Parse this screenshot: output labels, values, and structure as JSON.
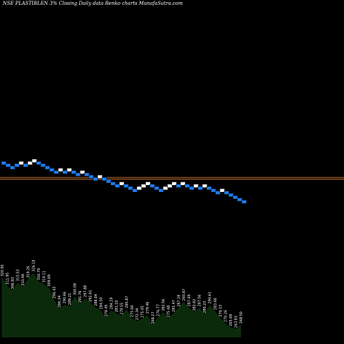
{
  "chart_data": {
    "type": "renko",
    "title": "NSE PLASTIBLEN  3% Closing Daily data  Renko  charts MunafaSutra.com",
    "reference_lines": [
      {
        "name": "upper",
        "y": 296.8,
        "color": "#c87533"
      },
      {
        "name": "lower",
        "y": 294.6,
        "color": "#c87533"
      }
    ],
    "ylim": [
      239.8,
      346.5
    ],
    "bricks": [
      {
        "top": 318.0,
        "bottom": 315.0,
        "direction": "down"
      },
      {
        "top": 315.0,
        "bottom": 312.0,
        "direction": "down"
      },
      {
        "top": 312.0,
        "bottom": 309.0,
        "direction": "down"
      },
      {
        "top": 315.0,
        "bottom": 312.0,
        "direction": "down"
      },
      {
        "top": 318.0,
        "bottom": 315.0,
        "direction": "up"
      },
      {
        "top": 315.0,
        "bottom": 312.0,
        "direction": "down"
      },
      {
        "top": 318.0,
        "bottom": 315.0,
        "direction": "up"
      },
      {
        "top": 321.0,
        "bottom": 318.0,
        "direction": "up"
      },
      {
        "top": 318.0,
        "bottom": 315.0,
        "direction": "down"
      },
      {
        "top": 315.0,
        "bottom": 312.0,
        "direction": "down"
      },
      {
        "top": 312.0,
        "bottom": 309.0,
        "direction": "down"
      },
      {
        "top": 309.0,
        "bottom": 306.0,
        "direction": "down"
      },
      {
        "top": 306.0,
        "bottom": 303.0,
        "direction": "down"
      },
      {
        "top": 309.0,
        "bottom": 306.0,
        "direction": "up"
      },
      {
        "top": 306.0,
        "bottom": 303.0,
        "direction": "down"
      },
      {
        "top": 309.0,
        "bottom": 306.0,
        "direction": "up"
      },
      {
        "top": 306.0,
        "bottom": 303.0,
        "direction": "down"
      },
      {
        "top": 303.0,
        "bottom": 300.0,
        "direction": "down"
      },
      {
        "top": 306.0,
        "bottom": 303.0,
        "direction": "up"
      },
      {
        "top": 303.0,
        "bottom": 300.0,
        "direction": "down"
      },
      {
        "top": 300.0,
        "bottom": 297.0,
        "direction": "down"
      },
      {
        "top": 297.0,
        "bottom": 294.0,
        "direction": "down"
      },
      {
        "top": 300.0,
        "bottom": 297.0,
        "direction": "up"
      },
      {
        "top": 297.0,
        "bottom": 294.0,
        "direction": "down"
      },
      {
        "top": 294.0,
        "bottom": 291.0,
        "direction": "down"
      },
      {
        "top": 291.0,
        "bottom": 288.0,
        "direction": "down"
      },
      {
        "top": 288.0,
        "bottom": 285.0,
        "direction": "down"
      },
      {
        "top": 291.0,
        "bottom": 288.0,
        "direction": "up"
      },
      {
        "top": 288.0,
        "bottom": 285.0,
        "direction": "down"
      },
      {
        "top": 285.0,
        "bottom": 282.0,
        "direction": "down"
      },
      {
        "top": 282.0,
        "bottom": 279.0,
        "direction": "down"
      },
      {
        "top": 285.0,
        "bottom": 282.0,
        "direction": "up"
      },
      {
        "top": 288.0,
        "bottom": 285.0,
        "direction": "up"
      },
      {
        "top": 291.0,
        "bottom": 288.0,
        "direction": "up"
      },
      {
        "top": 288.0,
        "bottom": 285.0,
        "direction": "down"
      },
      {
        "top": 285.0,
        "bottom": 282.0,
        "direction": "down"
      },
      {
        "top": 282.0,
        "bottom": 279.0,
        "direction": "down"
      },
      {
        "top": 285.0,
        "bottom": 282.0,
        "direction": "up"
      },
      {
        "top": 288.0,
        "bottom": 285.0,
        "direction": "up"
      },
      {
        "top": 291.0,
        "bottom": 288.0,
        "direction": "up"
      },
      {
        "top": 288.0,
        "bottom": 285.0,
        "direction": "down"
      },
      {
        "top": 291.0,
        "bottom": 288.0,
        "direction": "up"
      },
      {
        "top": 288.0,
        "bottom": 285.0,
        "direction": "down"
      },
      {
        "top": 285.0,
        "bottom": 282.0,
        "direction": "down"
      },
      {
        "top": 288.0,
        "bottom": 285.0,
        "direction": "up"
      },
      {
        "top": 285.0,
        "bottom": 282.0,
        "direction": "down"
      },
      {
        "top": 288.0,
        "bottom": 285.0,
        "direction": "up"
      },
      {
        "top": 285.0,
        "bottom": 282.0,
        "direction": "down"
      },
      {
        "top": 282.0,
        "bottom": 279.0,
        "direction": "down"
      },
      {
        "top": 279.0,
        "bottom": 276.0,
        "direction": "down"
      },
      {
        "top": 282.0,
        "bottom": 279.0,
        "direction": "up"
      },
      {
        "top": 279.0,
        "bottom": 276.0,
        "direction": "down"
      },
      {
        "top": 276.0,
        "bottom": 273.0,
        "direction": "down"
      },
      {
        "top": 273.0,
        "bottom": 270.0,
        "direction": "down"
      },
      {
        "top": 270.0,
        "bottom": 267.0,
        "direction": "down"
      },
      {
        "top": 267.0,
        "bottom": 264.0,
        "direction": "down"
      }
    ],
    "price_labels": [
      "320.95",
      "311.95",
      "306.83",
      "315.53",
      "310.48",
      "319.26",
      "326.18",
      "316.79",
      "314.11",
      "309.69",
      "296.43",
      "286.34",
      "290.66",
      "289.21",
      "300.08",
      "291.76",
      "297.88",
      "292.61",
      "288.04",
      "284.50",
      "276.45",
      "284.29",
      "281.10",
      "278.55",
      "285.87",
      "275.66",
      "272.34",
      "275.05",
      "279.46",
      "268.27",
      "276.77",
      "282.56",
      "275.48",
      "281.47",
      "287.28",
      "293.87",
      "287.49",
      "282.62",
      "287.56",
      "280.23",
      "290.61",
      "283.68",
      "276.13",
      "270.26",
      "265.69",
      "263.83",
      "268.50"
    ],
    "grid": false,
    "legend": "none"
  }
}
